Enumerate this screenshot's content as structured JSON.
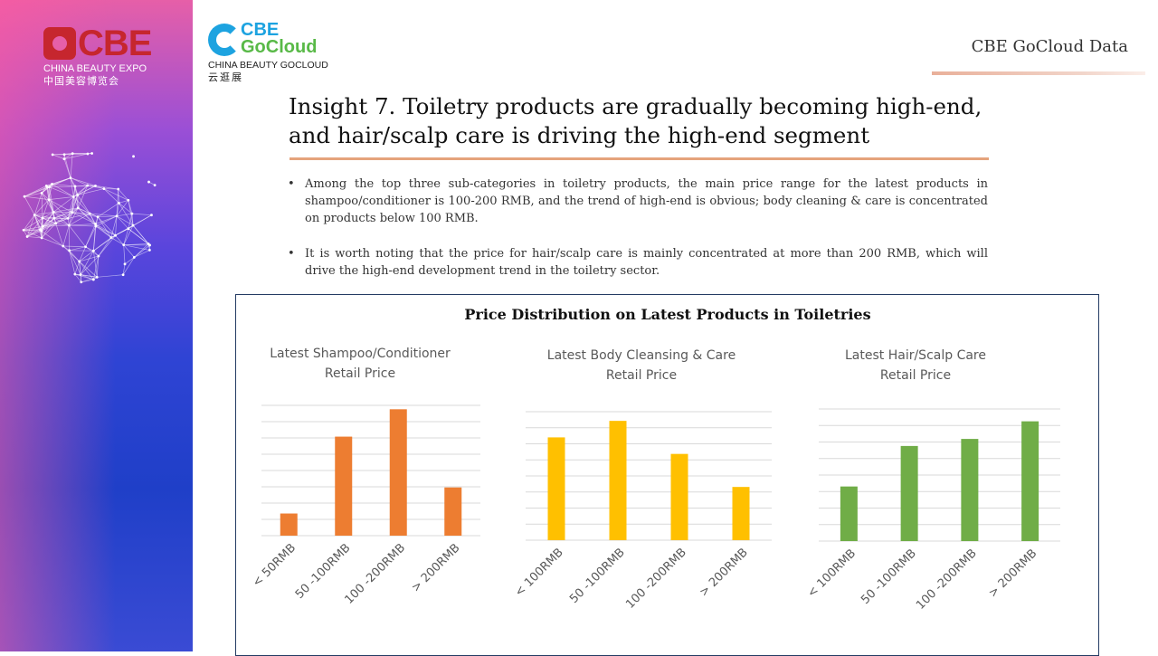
{
  "header": {
    "cbe_logo": {
      "word": "CBE",
      "subtitle_en": "CHINA BEAUTY EXPO",
      "subtitle_cn": "中国美容博览会"
    },
    "gocloud_logo": {
      "line1": "CBE",
      "line2": "GoCloud",
      "subtitle_en": "CHINA BEAUTY GOCLOUD",
      "subtitle_cn": "云逛展"
    },
    "brand": "CBE GoCloud Data"
  },
  "slide": {
    "title": "Insight 7. Toiletry products are gradually becoming high-end, and hair/scalp care is driving the high-end segment",
    "bullets": [
      "Among the top three sub-categories in toiletry products, the main price range for the latest products in shampoo/conditioner is 100-200 RMB, and the trend of high-end is obvious; body cleaning & care is concentrated on products below 100 RMB.",
      "It is worth noting that the price for hair/scalp care is mainly concentrated at more than 200 RMB, which will drive the high-end development trend in the toiletry sector."
    ],
    "bullet_symbol": "•"
  },
  "figure_title": "Price Distribution on Latest Products in Toiletries",
  "chart_data": [
    {
      "type": "bar",
      "title_lines": [
        "Latest Shampoo/Conditioner",
        "Retail Price"
      ],
      "categories": [
        "< 50RMB",
        "50 -100RMB",
        "100 -200RMB",
        "> 200RMB"
      ],
      "values": [
        1.7,
        7.6,
        9.7,
        3.7
      ],
      "ylim": [
        0,
        10
      ],
      "grid": true,
      "color": "#ed7d31"
    },
    {
      "type": "bar",
      "title_lines": [
        "Latest Body Cleansing & Care",
        "Retail Price"
      ],
      "categories": [
        "< 100RMB",
        "50 -100RMB",
        "100 -200RMB",
        "> 200RMB"
      ],
      "values": [
        5.6,
        6.5,
        4.7,
        2.9
      ],
      "ylim": [
        0,
        7
      ],
      "grid": true,
      "color": "#ffc000"
    },
    {
      "type": "bar",
      "title_lines": [
        "Latest Hair/Scalp Care",
        "Retail Price"
      ],
      "categories": [
        "< 100RMB",
        "50 -100RMB",
        "100 -200RMB",
        "> 200RMB"
      ],
      "values": [
        3.1,
        5.4,
        5.8,
        6.8
      ],
      "ylim": [
        0,
        7.5
      ],
      "grid": true,
      "color": "#70ad47"
    }
  ]
}
